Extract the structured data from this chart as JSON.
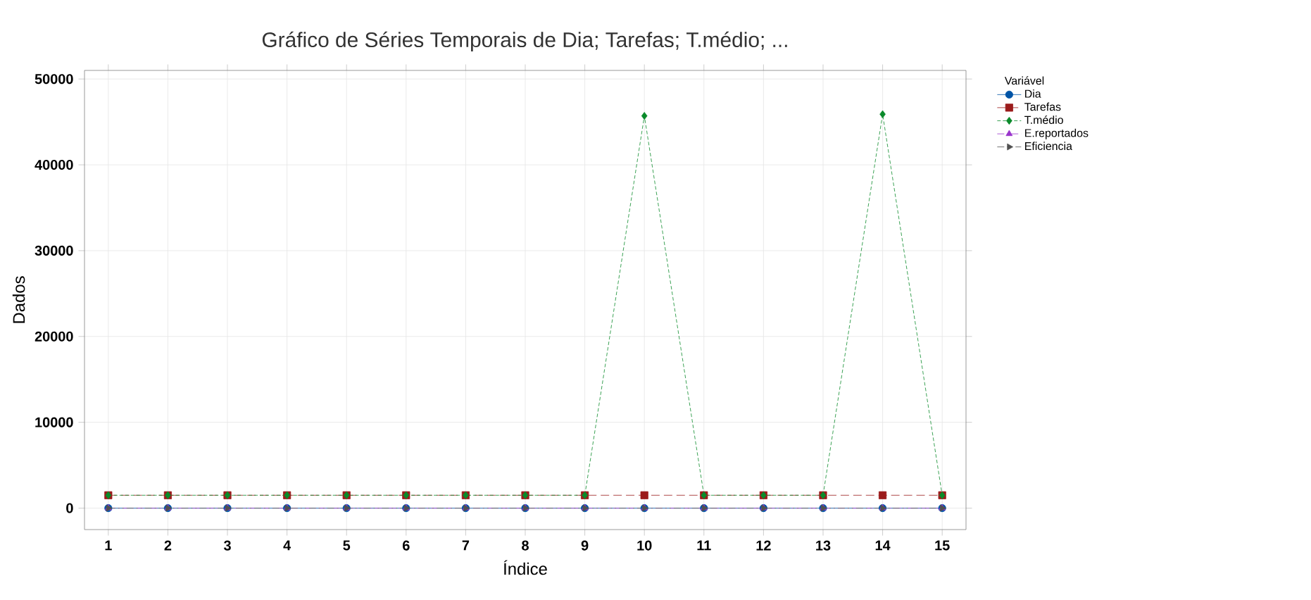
{
  "chart_data": {
    "type": "line",
    "title": "Gráfico de Séries Temporais de Dia; Tarefas; T.médio; ...",
    "xlabel": "Índice",
    "ylabel": "Dados",
    "legend_title": "Variável",
    "legend": "top right",
    "grid": true,
    "x": [
      1,
      2,
      3,
      4,
      5,
      6,
      7,
      8,
      9,
      10,
      11,
      12,
      13,
      14,
      15
    ],
    "xlim": [
      0.6,
      15.4
    ],
    "xticks": [
      1,
      2,
      3,
      4,
      5,
      6,
      7,
      8,
      9,
      10,
      11,
      12,
      13,
      14,
      15
    ],
    "ylim": [
      -2500,
      51000
    ],
    "yticks": [
      0,
      10000,
      20000,
      30000,
      40000,
      50000
    ],
    "series": [
      {
        "name": "Dia",
        "color": "#0054a6",
        "marker": "circle",
        "line_style": "solid",
        "values": [
          0,
          0,
          0,
          0,
          0,
          0,
          0,
          0,
          0,
          0,
          0,
          0,
          0,
          0,
          0
        ]
      },
      {
        "name": "Tarefas",
        "color": "#9b1b1b",
        "marker": "square",
        "line_style": "dashed",
        "values": [
          1500,
          1500,
          1500,
          1500,
          1500,
          1500,
          1500,
          1500,
          1500,
          1500,
          1500,
          1500,
          1500,
          1500,
          1500
        ]
      },
      {
        "name": "T.médio",
        "color": "#0a8a2a",
        "marker": "diamond",
        "line_style": "dotted",
        "values": [
          1500,
          1500,
          1500,
          1500,
          1500,
          1500,
          1500,
          1500,
          1500,
          45700,
          1500,
          1500,
          1500,
          45900,
          1500
        ]
      },
      {
        "name": "E.reportados",
        "color": "#9933cc",
        "marker": "triangle",
        "line_style": "dashdot",
        "values": [
          0,
          0,
          0,
          0,
          0,
          0,
          0,
          0,
          0,
          0,
          0,
          0,
          0,
          0,
          0
        ]
      },
      {
        "name": "Eficiencia",
        "color": "#505050",
        "marker": "triangle-right",
        "line_style": "dashdotdot",
        "values": [
          0,
          0,
          0,
          0,
          0,
          0,
          0,
          0,
          0,
          0,
          0,
          0,
          0,
          0,
          0
        ]
      }
    ]
  }
}
